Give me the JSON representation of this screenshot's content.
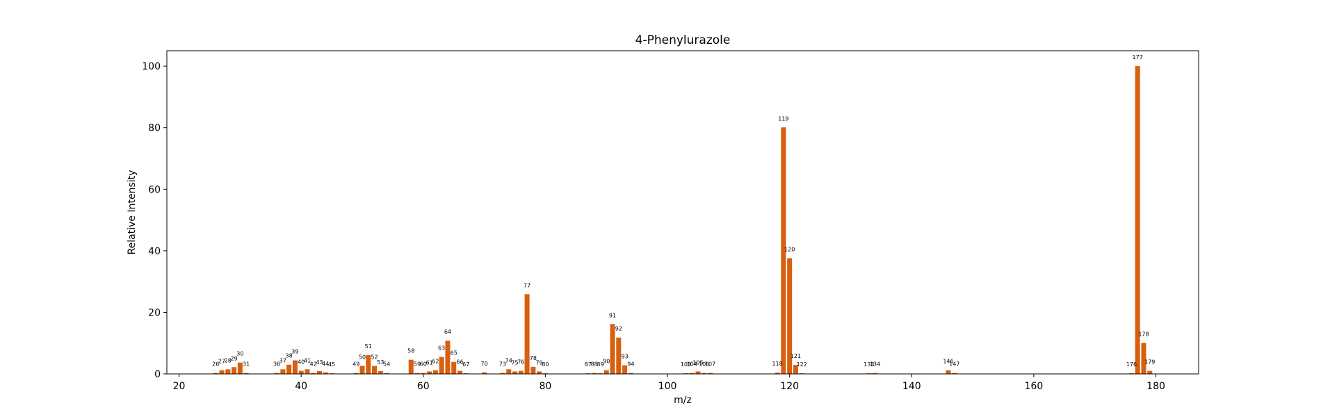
{
  "chart_data": {
    "type": "bar",
    "title": "4-Phenylurazole",
    "xlabel": "m/z",
    "ylabel": "Relative Intensity",
    "xlim": [
      18,
      187
    ],
    "ylim": [
      0,
      105
    ],
    "xticks": [
      20,
      40,
      60,
      80,
      100,
      120,
      140,
      160,
      180
    ],
    "yticks": [
      0,
      20,
      40,
      60,
      80,
      100
    ],
    "grid": false,
    "bar_color": "#d95f0e",
    "x": [
      26,
      27,
      28,
      29,
      30,
      31,
      36,
      37,
      38,
      39,
      40,
      41,
      42,
      43,
      44,
      45,
      49,
      50,
      51,
      52,
      53,
      54,
      58,
      59,
      60,
      61,
      62,
      63,
      64,
      65,
      66,
      67,
      70,
      73,
      74,
      75,
      76,
      77,
      78,
      79,
      80,
      87,
      88,
      89,
      90,
      91,
      92,
      93,
      94,
      103,
      104,
      105,
      106,
      107,
      118,
      119,
      120,
      121,
      122,
      133,
      134,
      146,
      147,
      176,
      177,
      178,
      179
    ],
    "values": [
      0.3,
      1.2,
      1.5,
      2.2,
      3.7,
      0.3,
      0.3,
      1.5,
      3.0,
      4.4,
      1.0,
      1.5,
      0.3,
      0.9,
      0.5,
      0.2,
      0.3,
      2.6,
      6.1,
      2.6,
      0.9,
      0.3,
      4.6,
      0.3,
      0.3,
      0.8,
      1.2,
      5.5,
      10.8,
      3.9,
      1.0,
      0.2,
      0.5,
      0.3,
      1.5,
      0.8,
      1.0,
      25.9,
      2.3,
      0.8,
      0.2,
      0.2,
      0.3,
      0.2,
      1.2,
      16.2,
      11.8,
      2.8,
      0.3,
      0.2,
      0.3,
      0.8,
      0.3,
      0.3,
      0.4,
      80.1,
      37.6,
      2.9,
      0.2,
      0.2,
      0.3,
      1.2,
      0.3,
      0.2,
      100.0,
      10.1,
      1.0
    ]
  }
}
